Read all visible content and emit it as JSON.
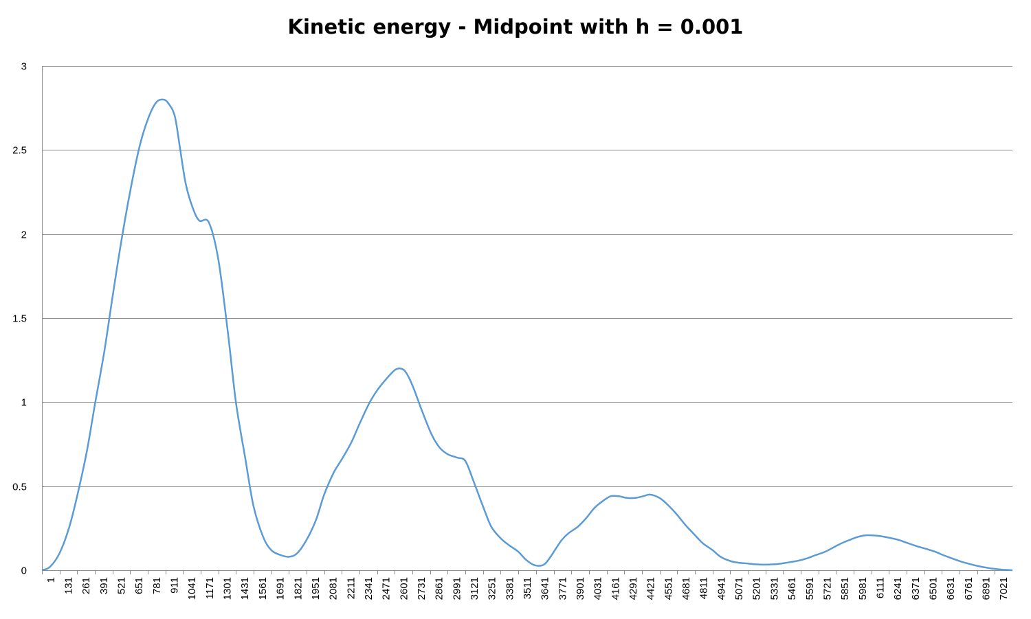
{
  "chart_data": {
    "type": "line",
    "title": "Kinetic energy - Midpoint with h = 0.001",
    "xlabel": "",
    "ylabel": "",
    "ylim": [
      0,
      3
    ],
    "xlim": [
      1,
      7150
    ],
    "y_ticks": [
      "0",
      "0.5",
      "1",
      "1.5",
      "2",
      "2.5",
      "3"
    ],
    "x_tick_labels": [
      "1",
      "131",
      "261",
      "391",
      "521",
      "651",
      "781",
      "911",
      "1041",
      "1171",
      "1301",
      "1431",
      "1561",
      "1691",
      "1821",
      "1951",
      "2081",
      "2211",
      "2341",
      "2471",
      "2601",
      "2731",
      "2861",
      "2991",
      "3121",
      "3251",
      "3381",
      "3511",
      "3641",
      "3771",
      "3901",
      "4031",
      "4161",
      "4291",
      "4421",
      "4551",
      "4681",
      "4811",
      "4941",
      "5071",
      "5201",
      "5331",
      "5461",
      "5591",
      "5721",
      "5851",
      "5981",
      "6111",
      "6241",
      "6371",
      "6501",
      "6631",
      "6761",
      "6891",
      "7021"
    ],
    "grid": "horizontal",
    "legend": "none",
    "line_color": "#5B9BD5",
    "series": [
      {
        "points": [
          [
            1,
            0.0
          ],
          [
            60,
            0.02
          ],
          [
            130,
            0.1
          ],
          [
            200,
            0.25
          ],
          [
            260,
            0.44
          ],
          [
            330,
            0.7
          ],
          [
            390,
            0.98
          ],
          [
            460,
            1.3
          ],
          [
            520,
            1.62
          ],
          [
            580,
            1.93
          ],
          [
            650,
            2.25
          ],
          [
            720,
            2.52
          ],
          [
            780,
            2.68
          ],
          [
            840,
            2.78
          ],
          [
            890,
            2.8
          ],
          [
            930,
            2.78
          ],
          [
            980,
            2.7
          ],
          [
            1020,
            2.5
          ],
          [
            1060,
            2.3
          ],
          [
            1110,
            2.16
          ],
          [
            1160,
            2.08
          ],
          [
            1230,
            2.07
          ],
          [
            1300,
            1.85
          ],
          [
            1370,
            1.42
          ],
          [
            1430,
            1.0
          ],
          [
            1500,
            0.66
          ],
          [
            1560,
            0.38
          ],
          [
            1630,
            0.2
          ],
          [
            1690,
            0.12
          ],
          [
            1760,
            0.09
          ],
          [
            1820,
            0.08
          ],
          [
            1880,
            0.1
          ],
          [
            1950,
            0.18
          ],
          [
            2020,
            0.3
          ],
          [
            2080,
            0.45
          ],
          [
            2150,
            0.58
          ],
          [
            2210,
            0.66
          ],
          [
            2280,
            0.76
          ],
          [
            2340,
            0.87
          ],
          [
            2410,
            0.99
          ],
          [
            2470,
            1.07
          ],
          [
            2540,
            1.14
          ],
          [
            2600,
            1.19
          ],
          [
            2640,
            1.2
          ],
          [
            2680,
            1.18
          ],
          [
            2730,
            1.1
          ],
          [
            2800,
            0.95
          ],
          [
            2870,
            0.81
          ],
          [
            2930,
            0.73
          ],
          [
            2990,
            0.69
          ],
          [
            3060,
            0.67
          ],
          [
            3120,
            0.65
          ],
          [
            3180,
            0.53
          ],
          [
            3250,
            0.38
          ],
          [
            3310,
            0.26
          ],
          [
            3380,
            0.19
          ],
          [
            3440,
            0.15
          ],
          [
            3510,
            0.11
          ],
          [
            3570,
            0.06
          ],
          [
            3630,
            0.03
          ],
          [
            3690,
            0.03
          ],
          [
            3730,
            0.06
          ],
          [
            3780,
            0.12
          ],
          [
            3830,
            0.18
          ],
          [
            3880,
            0.22
          ],
          [
            3950,
            0.26
          ],
          [
            4010,
            0.31
          ],
          [
            4070,
            0.37
          ],
          [
            4130,
            0.41
          ],
          [
            4190,
            0.44
          ],
          [
            4250,
            0.44
          ],
          [
            4310,
            0.43
          ],
          [
            4370,
            0.43
          ],
          [
            4430,
            0.44
          ],
          [
            4480,
            0.45
          ],
          [
            4550,
            0.43
          ],
          [
            4610,
            0.39
          ],
          [
            4680,
            0.33
          ],
          [
            4740,
            0.27
          ],
          [
            4810,
            0.21
          ],
          [
            4870,
            0.16
          ],
          [
            4940,
            0.12
          ],
          [
            5000,
            0.08
          ],
          [
            5070,
            0.055
          ],
          [
            5130,
            0.045
          ],
          [
            5200,
            0.04
          ],
          [
            5260,
            0.035
          ],
          [
            5320,
            0.033
          ],
          [
            5390,
            0.035
          ],
          [
            5450,
            0.04
          ],
          [
            5510,
            0.048
          ],
          [
            5580,
            0.058
          ],
          [
            5640,
            0.072
          ],
          [
            5700,
            0.09
          ],
          [
            5770,
            0.11
          ],
          [
            5830,
            0.135
          ],
          [
            5890,
            0.16
          ],
          [
            5950,
            0.18
          ],
          [
            6010,
            0.198
          ],
          [
            6070,
            0.208
          ],
          [
            6130,
            0.207
          ],
          [
            6200,
            0.2
          ],
          [
            6260,
            0.19
          ],
          [
            6320,
            0.178
          ],
          [
            6390,
            0.158
          ],
          [
            6450,
            0.142
          ],
          [
            6510,
            0.128
          ],
          [
            6580,
            0.11
          ],
          [
            6640,
            0.09
          ],
          [
            6700,
            0.072
          ],
          [
            6770,
            0.052
          ],
          [
            6830,
            0.038
          ],
          [
            6890,
            0.026
          ],
          [
            6960,
            0.015
          ],
          [
            7020,
            0.008
          ],
          [
            7080,
            0.003
          ],
          [
            7150,
            0.0
          ]
        ]
      }
    ]
  }
}
